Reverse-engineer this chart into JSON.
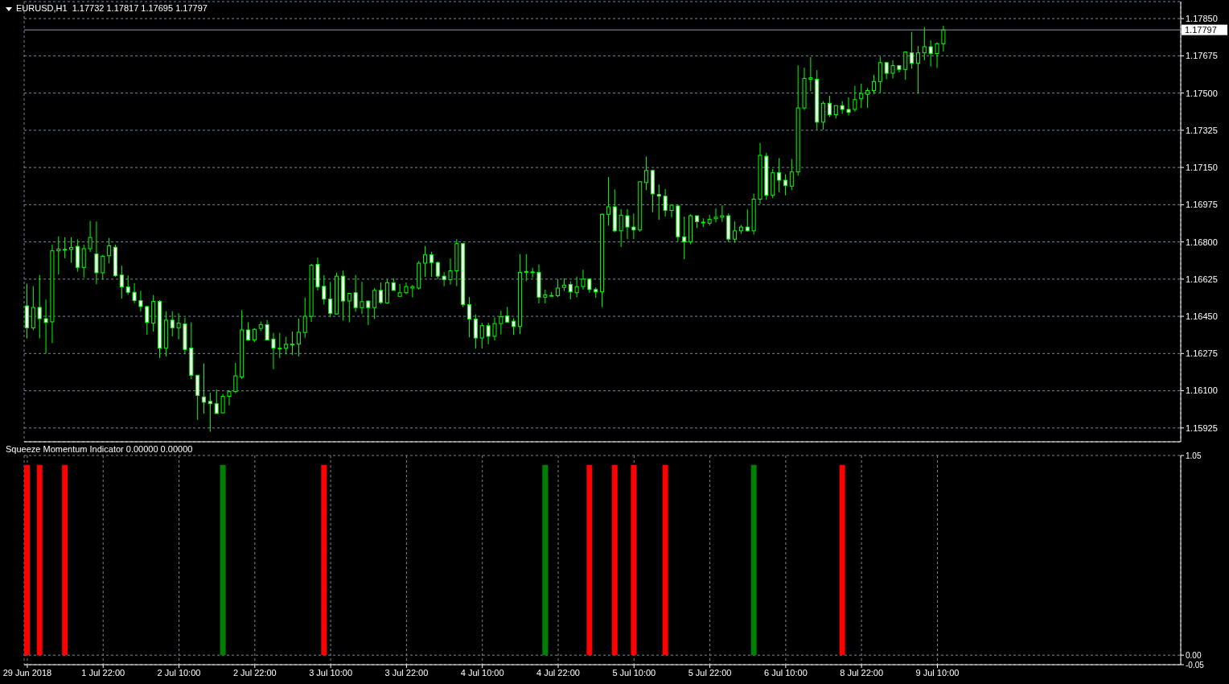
{
  "chart_data": [
    {
      "type": "candlestick",
      "title": "EURUSD,H1  1.17732 1.17817 1.17695 1.17797",
      "categories": [
        null,
        null,
        null,
        null,
        null,
        null,
        null,
        null,
        null,
        null,
        null,
        null,
        null,
        null,
        null,
        null,
        null,
        null,
        null,
        null,
        null,
        null,
        null,
        null,
        null,
        null,
        null,
        null,
        null,
        null,
        null,
        null,
        null,
        null,
        null,
        null,
        null,
        null,
        null,
        null,
        null,
        null,
        null,
        null,
        null,
        null,
        null,
        null,
        null,
        null,
        null,
        null,
        null,
        null,
        null,
        null,
        null,
        null,
        null,
        null,
        null,
        null,
        null,
        null,
        null,
        null,
        null,
        null,
        null,
        null,
        null,
        null,
        null,
        null,
        null,
        null,
        null,
        null,
        null,
        null,
        null,
        null,
        null,
        null,
        null,
        null,
        null,
        null,
        null,
        null,
        null,
        null,
        null,
        null,
        null,
        null,
        null,
        null,
        null,
        null,
        null,
        null,
        null,
        null,
        null,
        null,
        null,
        null,
        null,
        null,
        null,
        null,
        null,
        null,
        null,
        null,
        null,
        null,
        null,
        null,
        null,
        null,
        null,
        null,
        null,
        null,
        null,
        null,
        null,
        null,
        null,
        null,
        null,
        null,
        null,
        null,
        null,
        null,
        null,
        null,
        null,
        null,
        null,
        null,
        null,
        null,
        null,
        null,
        null,
        null,
        null,
        null,
        null,
        null,
        null,
        null,
        null,
        null,
        null,
        null,
        null,
        null,
        null,
        null,
        null,
        null,
        null,
        null,
        null,
        null,
        null,
        null,
        null,
        null,
        null,
        null,
        null,
        null,
        null,
        null,
        null,
        null,
        null
      ],
      "ohlc": [
        [
          1.16499,
          1.16603,
          1.16346,
          1.16396
        ],
        [
          1.16396,
          1.16592,
          1.16385,
          1.16492
        ],
        [
          1.16492,
          1.16645,
          1.16346,
          1.16439
        ],
        [
          1.16439,
          1.16529,
          1.16276,
          1.16421
        ],
        [
          1.16424,
          1.16787,
          1.16324,
          1.16758
        ],
        [
          1.16758,
          1.16826,
          1.16647,
          1.16766
        ],
        [
          1.16765,
          1.16822,
          1.16723,
          1.16765
        ],
        [
          1.16765,
          1.16822,
          1.16702,
          1.16774
        ],
        [
          1.16779,
          1.16812,
          1.1666,
          1.1668
        ],
        [
          1.1668,
          1.16787,
          1.16632,
          1.16768
        ],
        [
          1.16768,
          1.16899,
          1.16753,
          1.16821
        ],
        [
          1.16743,
          1.16896,
          1.16601,
          1.16655
        ],
        [
          1.16655,
          1.16739,
          1.16623,
          1.16733
        ],
        [
          1.16735,
          1.16819,
          1.16699,
          1.16782
        ],
        [
          1.16775,
          1.16787,
          1.16636,
          1.16641
        ],
        [
          1.16644,
          1.16688,
          1.16533,
          1.16588
        ],
        [
          1.16588,
          1.16642,
          1.16551,
          1.16563
        ],
        [
          1.16563,
          1.16606,
          1.16512,
          1.16524
        ],
        [
          1.16524,
          1.1657,
          1.16473,
          1.16496
        ],
        [
          1.16496,
          1.165,
          1.16363,
          1.16421
        ],
        [
          1.16418,
          1.1655,
          1.16378,
          1.1652
        ],
        [
          1.1652,
          1.16526,
          1.16254,
          1.163
        ],
        [
          1.163,
          1.16474,
          1.16261,
          1.16432
        ],
        [
          1.16432,
          1.16474,
          1.16356,
          1.16396
        ],
        [
          1.16396,
          1.16465,
          1.16342,
          1.16418
        ],
        [
          1.16414,
          1.16444,
          1.16271,
          1.16294
        ],
        [
          1.16301,
          1.16422,
          1.16155,
          1.16173
        ],
        [
          1.16173,
          1.16173,
          1.15963,
          1.16078
        ],
        [
          1.16071,
          1.16229,
          1.15992,
          1.16046
        ],
        [
          1.1605,
          1.1609,
          1.15907,
          1.16039
        ],
        [
          1.16039,
          1.16106,
          1.15992,
          1.15993
        ],
        [
          1.15996,
          1.16085,
          1.15996,
          1.16074
        ],
        [
          1.16074,
          1.16103,
          1.16032,
          1.16096
        ],
        [
          1.16096,
          1.16231,
          1.16088,
          1.1617
        ],
        [
          1.16165,
          1.16479,
          1.16155,
          1.16386
        ],
        [
          1.16386,
          1.16422,
          1.16335,
          1.16339
        ],
        [
          1.16339,
          1.16394,
          1.16329,
          1.16389
        ],
        [
          1.16393,
          1.16426,
          1.16381,
          1.16411
        ],
        [
          1.16411,
          1.16433,
          1.16339,
          1.16339
        ],
        [
          1.16343,
          1.16372,
          1.16201,
          1.163
        ],
        [
          1.163,
          1.16372,
          1.16254,
          1.163
        ],
        [
          1.163,
          1.16354,
          1.16271,
          1.16319
        ],
        [
          1.16319,
          1.16379,
          1.16268,
          1.16319
        ],
        [
          1.16319,
          1.16439,
          1.16261,
          1.16375
        ],
        [
          1.16374,
          1.16538,
          1.16349,
          1.1645
        ],
        [
          1.1645,
          1.16697,
          1.16424,
          1.1669
        ],
        [
          1.16694,
          1.16726,
          1.16572,
          1.16588
        ],
        [
          1.16591,
          1.16644,
          1.16505,
          1.16531
        ],
        [
          1.16531,
          1.16612,
          1.16446,
          1.16464
        ],
        [
          1.16461,
          1.16655,
          1.16458,
          1.16639
        ],
        [
          1.16639,
          1.16665,
          1.1643,
          1.16522
        ],
        [
          1.16522,
          1.16558,
          1.16422,
          1.16558
        ],
        [
          1.16561,
          1.16644,
          1.16472,
          1.16491
        ],
        [
          1.16491,
          1.16612,
          1.16461,
          1.16519
        ],
        [
          1.16522,
          1.16526,
          1.16409,
          1.16491
        ],
        [
          1.16491,
          1.16583,
          1.16437,
          1.16572
        ],
        [
          1.16572,
          1.16609,
          1.16508,
          1.16515
        ],
        [
          1.16513,
          1.16623,
          1.16509,
          1.16608
        ],
        [
          1.16608,
          1.16629,
          1.16572,
          1.16572
        ],
        [
          1.16544,
          1.16602,
          1.16544,
          1.16561
        ],
        [
          1.16561,
          1.16609,
          1.16554,
          1.1659
        ],
        [
          1.16583,
          1.16597,
          1.16539,
          1.1659
        ],
        [
          1.16583,
          1.1671,
          1.16576,
          1.167
        ],
        [
          1.167,
          1.16781,
          1.16635,
          1.16739
        ],
        [
          1.16739,
          1.16754,
          1.16635,
          1.16703
        ],
        [
          1.16703,
          1.16708,
          1.16625,
          1.16639
        ],
        [
          1.16639,
          1.16657,
          1.16592,
          1.16622
        ],
        [
          1.16622,
          1.16722,
          1.16599,
          1.16664
        ],
        [
          1.16664,
          1.16813,
          1.16592,
          1.16792
        ],
        [
          1.16792,
          1.16792,
          1.16493,
          1.16505
        ],
        [
          1.16505,
          1.1654,
          1.16351,
          1.16437
        ],
        [
          1.16437,
          1.16459,
          1.16298,
          1.16348
        ],
        [
          1.16348,
          1.1642,
          1.16298,
          1.16406
        ],
        [
          1.16406,
          1.1642,
          1.16319,
          1.16356
        ],
        [
          1.16356,
          1.16445,
          1.16337,
          1.16416
        ],
        [
          1.16416,
          1.16476,
          1.16365,
          1.16448
        ],
        [
          1.16452,
          1.16494,
          1.1642,
          1.16423
        ],
        [
          1.16427,
          1.16441,
          1.16362,
          1.16402
        ],
        [
          1.16402,
          1.16743,
          1.16367,
          1.16657
        ],
        [
          1.16657,
          1.16743,
          1.16615,
          1.16661
        ],
        [
          1.16659,
          1.16678,
          1.16631,
          1.16659
        ],
        [
          1.16657,
          1.16694,
          1.16511,
          1.1654
        ],
        [
          1.1654,
          1.16576,
          1.16511,
          1.16551
        ],
        [
          1.16548,
          1.16565,
          1.16544,
          1.16548
        ],
        [
          1.16547,
          1.16625,
          1.1654,
          1.16583
        ],
        [
          1.16586,
          1.16629,
          1.16569,
          1.16597
        ],
        [
          1.166,
          1.16615,
          1.1653,
          1.16565
        ],
        [
          1.16561,
          1.16637,
          1.1654,
          1.1659
        ],
        [
          1.1659,
          1.16669,
          1.16576,
          1.16625
        ],
        [
          1.16625,
          1.16629,
          1.16561,
          1.16576
        ],
        [
          1.16576,
          1.16586,
          1.16537,
          1.16565
        ],
        [
          1.16565,
          1.16933,
          1.16493,
          1.1693
        ],
        [
          1.1693,
          1.17105,
          1.16876,
          1.16965
        ],
        [
          1.16965,
          1.17047,
          1.16845,
          1.16852
        ],
        [
          1.16852,
          1.16955,
          1.16776,
          1.16926
        ],
        [
          1.16923,
          1.16955,
          1.16813,
          1.1687
        ],
        [
          1.1687,
          1.16933,
          1.16813,
          1.16856
        ],
        [
          1.16856,
          1.17083,
          1.16848,
          1.17083
        ],
        [
          1.17079,
          1.17201,
          1.17043,
          1.17136
        ],
        [
          1.17136,
          1.1714,
          1.1694,
          1.17026
        ],
        [
          1.17023,
          1.1707,
          1.16904,
          1.17015
        ],
        [
          1.17015,
          1.17049,
          1.16919,
          1.16948
        ],
        [
          1.16948,
          1.16976,
          1.16915,
          1.16973
        ],
        [
          1.16969,
          1.16976,
          1.168,
          1.16824
        ],
        [
          1.16824,
          1.16919,
          1.16718,
          1.168
        ],
        [
          1.168,
          1.1693,
          1.16789,
          1.16923
        ],
        [
          1.16923,
          1.16923,
          1.16865,
          1.16895
        ],
        [
          1.16893,
          1.16911,
          1.16869,
          1.16893
        ],
        [
          1.16888,
          1.16927,
          1.16877,
          1.16906
        ],
        [
          1.16909,
          1.16958,
          1.16891,
          1.16916
        ],
        [
          1.16916,
          1.16972,
          1.16894,
          1.16923
        ],
        [
          1.16923,
          1.16934,
          1.16799,
          1.16813
        ],
        [
          1.16813,
          1.16896,
          1.16796,
          1.16852
        ],
        [
          1.16852,
          1.1688,
          1.16838,
          1.1687
        ],
        [
          1.1687,
          1.16953,
          1.16849,
          1.16852
        ],
        [
          1.16852,
          1.17027,
          1.16835,
          1.17001
        ],
        [
          1.17001,
          1.17265,
          1.16979,
          1.17207
        ],
        [
          1.17203,
          1.17219,
          1.16998,
          1.17019
        ],
        [
          1.17019,
          1.17143,
          1.17005,
          1.17125
        ],
        [
          1.17125,
          1.17194,
          1.17033,
          1.1709
        ],
        [
          1.1709,
          1.17118,
          1.17019,
          1.17065
        ],
        [
          1.17062,
          1.1719,
          1.17044,
          1.17129
        ],
        [
          1.17129,
          1.1763,
          1.17111,
          1.1743
        ],
        [
          1.1743,
          1.17619,
          1.1742,
          1.17569
        ],
        [
          1.17565,
          1.17669,
          1.17508,
          1.17572
        ],
        [
          1.17565,
          1.17608,
          1.17328,
          1.17363
        ],
        [
          1.17363,
          1.17462,
          1.17328,
          1.17452
        ],
        [
          1.17452,
          1.17487,
          1.17387,
          1.17398
        ],
        [
          1.17398,
          1.17441,
          1.17381,
          1.17441
        ],
        [
          1.17441,
          1.17462,
          1.17402,
          1.17423
        ],
        [
          1.17423,
          1.1748,
          1.17395,
          1.17409
        ],
        [
          1.17423,
          1.17534,
          1.17413,
          1.17469
        ],
        [
          1.17473,
          1.17544,
          1.1743,
          1.17498
        ],
        [
          1.17494,
          1.17524,
          1.1743,
          1.17512
        ],
        [
          1.17512,
          1.17586,
          1.17494,
          1.17554
        ],
        [
          1.17554,
          1.17671,
          1.17501,
          1.17643
        ],
        [
          1.17643,
          1.17647,
          1.17565,
          1.17593
        ],
        [
          1.17593,
          1.17654,
          1.17569,
          1.17629
        ],
        [
          1.17629,
          1.17632,
          1.17597,
          1.17611
        ],
        [
          1.17611,
          1.17695,
          1.17562,
          1.17693
        ],
        [
          1.17689,
          1.17788,
          1.17615,
          1.1764
        ],
        [
          1.1764,
          1.17721,
          1.17498,
          1.17689
        ],
        [
          1.17689,
          1.1781,
          1.17654,
          1.17718
        ],
        [
          1.17718,
          1.17749,
          1.17625,
          1.17686
        ],
        [
          1.17686,
          1.17739,
          1.17618,
          1.17732
        ],
        [
          1.17732,
          1.17817,
          1.17695,
          1.17797
        ],
        null,
        null,
        null,
        null,
        null,
        null,
        null,
        null,
        null,
        null,
        null,
        null,
        null,
        null,
        null,
        null,
        null,
        null,
        null,
        null,
        null,
        null,
        null,
        null,
        null,
        null,
        null,
        null,
        null,
        null,
        null,
        null,
        null,
        null,
        null,
        null,
        null
      ],
      "color": "#00ff00",
      "ylim": [
        1.1586,
        1.1793
      ],
      "yticks": [
        1.15925,
        {
          "value": 1.161,
          "label": "1.16100"
        },
        1.16275,
        {
          "value": 1.1645,
          "label": "1.16450"
        },
        1.16625,
        {
          "value": 1.168,
          "label": "1.16800"
        },
        1.16975,
        {
          "value": 1.1715,
          "label": "1.17150"
        },
        1.17325,
        {
          "value": 1.175,
          "label": "1.17500"
        },
        1.17675,
        {
          "value": 1.1785,
          "label": "1.17850"
        }
      ],
      "grid": true,
      "tick_labels": "y",
      "ref_lines": [
        {
          "axis": "y",
          "value": 1.17797,
          "label": "1.17797",
          "color": "#8899aa"
        }
      ]
    },
    {
      "type": "bar",
      "title": "Squeeze Momentum Indicator 0.00000 0.00000",
      "categories": [
        "29 Jun 2018",
        null,
        null,
        null,
        null,
        null,
        null,
        null,
        null,
        null,
        null,
        null,
        "1 Jul 22:00",
        null,
        null,
        null,
        null,
        null,
        null,
        null,
        null,
        null,
        null,
        null,
        "2 Jul 10:00",
        null,
        null,
        null,
        null,
        null,
        null,
        null,
        null,
        null,
        null,
        null,
        "2 Jul 22:00",
        null,
        null,
        null,
        null,
        null,
        null,
        null,
        null,
        null,
        null,
        null,
        "3 Jul 10:00",
        null,
        null,
        null,
        null,
        null,
        null,
        null,
        null,
        null,
        null,
        null,
        "3 Jul 22:00",
        null,
        null,
        null,
        null,
        null,
        null,
        null,
        null,
        null,
        null,
        null,
        "4 Jul 10:00",
        null,
        null,
        null,
        null,
        null,
        null,
        null,
        null,
        null,
        null,
        null,
        "4 Jul 22:00",
        null,
        null,
        null,
        null,
        null,
        null,
        null,
        null,
        null,
        null,
        null,
        "5 Jul 10:00",
        null,
        null,
        null,
        null,
        null,
        null,
        null,
        null,
        null,
        null,
        null,
        "5 Jul 22:00",
        null,
        null,
        null,
        null,
        null,
        null,
        null,
        null,
        null,
        null,
        null,
        "6 Jul 10:00",
        null,
        null,
        null,
        null,
        null,
        null,
        null,
        null,
        null,
        null,
        null,
        "8 Jul 22:00",
        null,
        null,
        null,
        null,
        null,
        null,
        null,
        null,
        null,
        null,
        null,
        "9 Jul 10:00",
        null,
        null,
        null,
        null,
        null,
        null,
        null,
        null,
        null,
        null,
        null,
        null,
        null,
        null,
        null,
        null,
        null,
        null,
        null,
        null,
        null,
        null,
        null,
        null,
        null,
        null,
        null,
        null,
        null,
        null,
        null,
        null,
        null,
        null,
        null,
        null,
        null,
        null
      ],
      "series": [
        {
          "color": "#ff0000",
          "values": [
            1,
            null,
            1,
            null,
            null,
            null,
            1,
            null,
            null,
            null,
            null,
            null,
            null,
            null,
            null,
            null,
            null,
            null,
            null,
            null,
            null,
            null,
            null,
            null,
            null,
            null,
            null,
            null,
            null,
            null,
            null,
            null,
            null,
            null,
            null,
            null,
            null,
            null,
            null,
            null,
            null,
            null,
            null,
            null,
            null,
            null,
            null,
            1,
            null,
            null,
            null,
            null,
            null,
            null,
            null,
            null,
            null,
            null,
            null,
            null,
            null,
            null,
            null,
            null,
            null,
            null,
            null,
            null,
            null,
            null,
            null,
            null,
            null,
            null,
            null,
            null,
            null,
            null,
            null,
            null,
            null,
            null,
            null,
            null,
            null,
            null,
            null,
            null,
            null,
            1,
            null,
            null,
            null,
            1,
            null,
            null,
            1,
            null,
            null,
            null,
            null,
            1,
            null,
            null,
            null,
            null,
            null,
            null,
            null,
            null,
            null,
            null,
            null,
            null,
            null,
            null,
            null,
            null,
            null,
            null,
            null,
            null,
            null,
            null,
            null,
            null,
            null,
            null,
            null,
            1,
            null,
            null,
            null,
            null,
            null,
            null,
            null,
            null,
            null,
            null,
            null,
            null,
            null,
            null,
            null,
            null,
            null,
            null,
            null,
            null,
            null,
            null,
            null,
            null,
            null,
            null,
            null,
            null,
            null,
            null,
            null,
            null,
            null,
            null,
            null,
            null,
            null,
            null,
            null,
            null,
            null,
            null,
            null,
            null,
            null,
            null,
            null,
            null,
            null,
            null,
            null,
            null,
            null
          ]
        },
        {
          "color": "#008000",
          "values": [
            null,
            null,
            null,
            null,
            null,
            null,
            null,
            null,
            null,
            null,
            null,
            null,
            null,
            null,
            null,
            null,
            null,
            null,
            null,
            null,
            null,
            null,
            null,
            null,
            null,
            null,
            null,
            null,
            null,
            null,
            null,
            1,
            null,
            null,
            null,
            null,
            null,
            null,
            null,
            null,
            null,
            null,
            null,
            null,
            null,
            null,
            null,
            null,
            null,
            null,
            null,
            null,
            null,
            null,
            null,
            null,
            null,
            null,
            null,
            null,
            null,
            null,
            null,
            null,
            null,
            null,
            null,
            null,
            null,
            null,
            null,
            null,
            null,
            null,
            null,
            null,
            null,
            null,
            null,
            null,
            null,
            null,
            1,
            null,
            null,
            null,
            null,
            null,
            null,
            null,
            null,
            null,
            null,
            null,
            null,
            null,
            null,
            null,
            null,
            null,
            null,
            null,
            null,
            null,
            null,
            null,
            null,
            null,
            null,
            null,
            null,
            null,
            null,
            null,
            null,
            1,
            null,
            null,
            null,
            null,
            null,
            null,
            null,
            null,
            null,
            null,
            null,
            null,
            null,
            null,
            null,
            null,
            null,
            null,
            null,
            null,
            null,
            null,
            null,
            null,
            null,
            null,
            null,
            null,
            null,
            null,
            null,
            null,
            null,
            null,
            null,
            null,
            null,
            null,
            null,
            null,
            null,
            null,
            null,
            null,
            null,
            null,
            null,
            null,
            null,
            null,
            null,
            null,
            null,
            null,
            null,
            null,
            null,
            null,
            null,
            null,
            null,
            null,
            null,
            null,
            null,
            null,
            null
          ]
        }
      ],
      "ylim": [
        -0.05,
        1.05
      ],
      "yticks": [
        -0.05,
        {
          "value": 0,
          "label": "0.00"
        },
        1.05
      ],
      "grid": true
    }
  ]
}
